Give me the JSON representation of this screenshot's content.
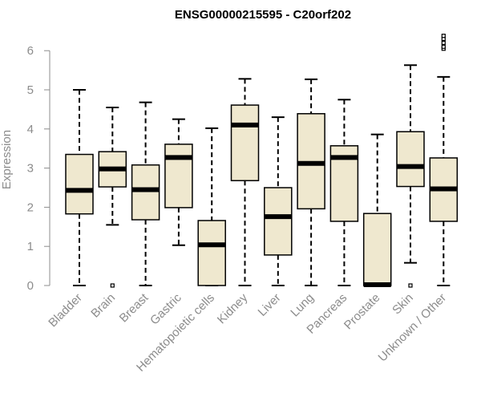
{
  "chart_data": {
    "type": "boxplot",
    "title": "ENSG00000215595 - C20orf202",
    "xlabel": "",
    "ylabel": "Expression",
    "ylim": [
      0,
      6.4
    ],
    "yticks": [
      0,
      1,
      2,
      3,
      4,
      5,
      6
    ],
    "box_fill": "#efe8cf",
    "categories": [
      "Bladder",
      "Brain",
      "Breast",
      "Gastric",
      "Hematopoietic cells",
      "Kidney",
      "Liver",
      "Lung",
      "Pancreas",
      "Prostate",
      "Skin",
      "Unknown / Other"
    ],
    "series": [
      {
        "name": "Bladder",
        "min": 0,
        "q1": 1.83,
        "median": 2.43,
        "q3": 3.35,
        "max": 5.0,
        "outliers": []
      },
      {
        "name": "Brain",
        "min": 1.55,
        "q1": 2.52,
        "median": 2.98,
        "q3": 3.42,
        "max": 4.55,
        "outliers": [
          0
        ]
      },
      {
        "name": "Breast",
        "min": 0,
        "q1": 1.68,
        "median": 2.45,
        "q3": 3.08,
        "max": 4.68,
        "outliers": []
      },
      {
        "name": "Gastric",
        "min": 1.03,
        "q1": 1.99,
        "median": 3.27,
        "q3": 3.61,
        "max": 4.25,
        "outliers": []
      },
      {
        "name": "Hematopoietic cells",
        "min": 0,
        "q1": 0,
        "median": 1.04,
        "q3": 1.66,
        "max": 4.02,
        "outliers": []
      },
      {
        "name": "Kidney",
        "min": 0,
        "q1": 2.68,
        "median": 4.1,
        "q3": 4.61,
        "max": 5.28,
        "outliers": []
      },
      {
        "name": "Liver",
        "min": 0,
        "q1": 0.78,
        "median": 1.76,
        "q3": 2.5,
        "max": 4.3,
        "outliers": []
      },
      {
        "name": "Lung",
        "min": 0,
        "q1": 1.96,
        "median": 3.12,
        "q3": 4.39,
        "max": 5.27,
        "outliers": []
      },
      {
        "name": "Pancreas",
        "min": 0,
        "q1": 1.64,
        "median": 3.27,
        "q3": 3.57,
        "max": 4.75,
        "outliers": []
      },
      {
        "name": "Prostate",
        "min": 0,
        "q1": 0,
        "median": 0.02,
        "q3": 1.84,
        "max": 3.86,
        "outliers": []
      },
      {
        "name": "Skin",
        "min": 0.58,
        "q1": 2.53,
        "median": 3.04,
        "q3": 3.93,
        "max": 5.63,
        "outliers": [
          0
        ]
      },
      {
        "name": "Unknown / Other",
        "min": 0,
        "q1": 1.64,
        "median": 2.47,
        "q3": 3.26,
        "max": 5.33,
        "outliers": [
          6.05,
          6.1,
          6.2,
          6.3,
          6.38
        ]
      }
    ]
  }
}
